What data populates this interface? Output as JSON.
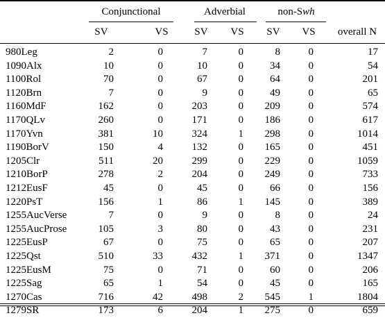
{
  "table": {
    "group_headers": {
      "conjunctional": "Conjunctional",
      "adverbial": "Adverbial",
      "non_swh_prefix": "non-S",
      "non_swh_italic": "wh"
    },
    "column_headers": {
      "sv1": "SV",
      "vs1": "VS",
      "sv2": "SV",
      "vs2": "VS",
      "sv3": "SV",
      "vs3": "VS",
      "overall": "overall N"
    },
    "rows": [
      {
        "text": "980Leg",
        "c": [
          "2",
          "0",
          "7",
          "0",
          "8",
          "0",
          "17"
        ]
      },
      {
        "text": "1090Alx",
        "c": [
          "10",
          "0",
          "10",
          "0",
          "34",
          "0",
          "54"
        ]
      },
      {
        "text": "1100Rol",
        "c": [
          "70",
          "0",
          "67",
          "0",
          "64",
          "0",
          "201"
        ]
      },
      {
        "text": "1120Brn",
        "c": [
          "7",
          "0",
          "9",
          "0",
          "49",
          "0",
          "65"
        ]
      },
      {
        "text": "1160MdF",
        "c": [
          "162",
          "0",
          "203",
          "0",
          "209",
          "0",
          "574"
        ]
      },
      {
        "text": "1170QLv",
        "c": [
          "260",
          "0",
          "171",
          "0",
          "186",
          "0",
          "617"
        ]
      },
      {
        "text": "1170Yvn",
        "c": [
          "381",
          "10",
          "324",
          "1",
          "298",
          "0",
          "1014"
        ]
      },
      {
        "text": "1190BorV",
        "c": [
          "150",
          "4",
          "132",
          "0",
          "165",
          "0",
          "451"
        ]
      },
      {
        "text": "1205Clr",
        "c": [
          "511",
          "20",
          "299",
          "0",
          "229",
          "0",
          "1059"
        ]
      },
      {
        "text": "1210BorP",
        "c": [
          "278",
          "2",
          "204",
          "0",
          "249",
          "0",
          "733"
        ]
      },
      {
        "text": "1212EusF",
        "c": [
          "45",
          "0",
          "45",
          "0",
          "66",
          "0",
          "156"
        ]
      },
      {
        "text": "1220PsT",
        "c": [
          "156",
          "1",
          "86",
          "1",
          "145",
          "0",
          "389"
        ]
      },
      {
        "text": "1255AucVerse",
        "c": [
          "7",
          "0",
          "9",
          "0",
          "8",
          "0",
          "24"
        ]
      },
      {
        "text": "1255AucProse",
        "c": [
          "105",
          "3",
          "80",
          "0",
          "43",
          "0",
          "231"
        ]
      },
      {
        "text": "1225EusP",
        "c": [
          "67",
          "0",
          "75",
          "0",
          "65",
          "0",
          "207"
        ]
      },
      {
        "text": "1225Qst",
        "c": [
          "510",
          "33",
          "432",
          "1",
          "371",
          "0",
          "1347"
        ]
      },
      {
        "text": "1225EusM",
        "c": [
          "75",
          "0",
          "71",
          "0",
          "60",
          "0",
          "206"
        ]
      },
      {
        "text": "1225Sag",
        "c": [
          "65",
          "1",
          "54",
          "0",
          "45",
          "0",
          "165"
        ]
      },
      {
        "text": "1270Cas",
        "c": [
          "716",
          "42",
          "498",
          "2",
          "545",
          "1",
          "1804"
        ]
      },
      {
        "text": "1279SR",
        "c": [
          "173",
          "6",
          "204",
          "1",
          "275",
          "0",
          "659"
        ]
      }
    ]
  }
}
